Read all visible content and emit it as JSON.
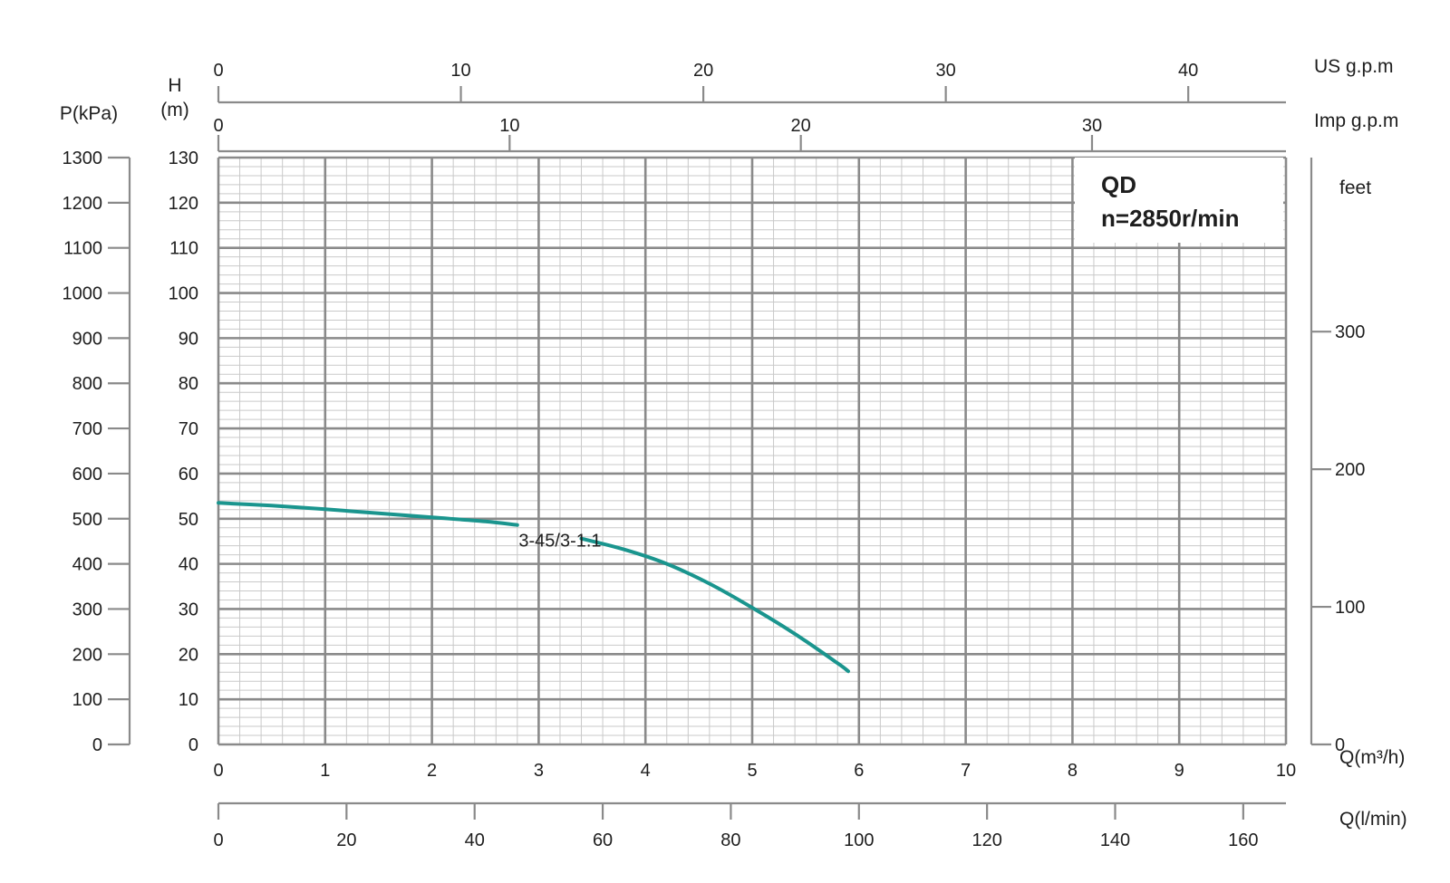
{
  "chart_data": {
    "type": "line",
    "title": "QD",
    "subtitle": "n=2850r/min",
    "x_axes": {
      "primary": {
        "label": "Q(m³/h)",
        "range": [
          0,
          10
        ],
        "ticks": [
          0,
          1,
          2,
          3,
          4,
          5,
          6,
          7,
          8,
          9,
          10
        ]
      },
      "lpm": {
        "label": "Q(l/min)",
        "range": [
          0,
          166.67
        ],
        "ticks": [
          0,
          20,
          40,
          60,
          80,
          100,
          120,
          140,
          160
        ]
      },
      "us_gpm": {
        "label": "US g.p.m",
        "range": [
          0,
          44.03
        ],
        "ticks": [
          0,
          10,
          20,
          30,
          40
        ]
      },
      "imp_gpm": {
        "label": "Imp g.p.m",
        "range": [
          0,
          36.66
        ],
        "ticks": [
          0,
          10,
          20,
          30
        ]
      }
    },
    "y_axes": {
      "primary": {
        "label_line1": "H",
        "label_line2": "(m)",
        "range": [
          0,
          130
        ],
        "ticks": [
          0,
          10,
          20,
          30,
          40,
          50,
          60,
          70,
          80,
          90,
          100,
          110,
          120,
          130
        ]
      },
      "pressure": {
        "label": "P(kPa)",
        "range": [
          0,
          1300
        ],
        "ticks": [
          0,
          100,
          200,
          300,
          400,
          500,
          600,
          700,
          800,
          900,
          1000,
          1100,
          1200,
          1300
        ]
      },
      "feet": {
        "label": "feet",
        "range": [
          0,
          426.5
        ],
        "ticks": [
          0,
          100,
          200,
          300
        ]
      }
    },
    "grid": true,
    "series": [
      {
        "name": "3-45/3-1.1",
        "color": "#1a958e",
        "segments": [
          {
            "x": [
              0,
              0.5,
              1.0,
              1.5,
              2.0,
              2.5,
              2.8
            ],
            "y": [
              53.5,
              52.9,
              52.1,
              51.2,
              50.3,
              49.4,
              48.6
            ]
          },
          {
            "x": [
              3.4,
              3.8,
              4.2,
              4.6,
              5.0,
              5.4,
              5.8,
              5.9
            ],
            "y": [
              45.6,
              43.2,
              40.0,
              35.6,
              30.3,
              24.5,
              18.0,
              16.2
            ]
          }
        ],
        "label_at": {
          "x": 3.2,
          "y": 45.2
        }
      }
    ]
  }
}
